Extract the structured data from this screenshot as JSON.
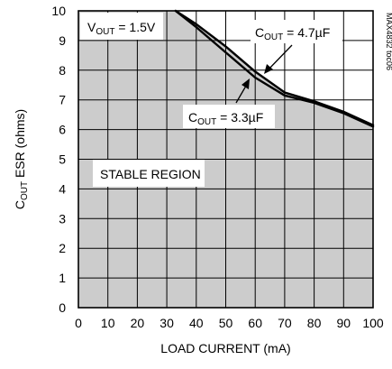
{
  "chart_data": {
    "type": "area",
    "xlabel": "LOAD CURRENT (mA)",
    "ylabel": {
      "main": "C",
      "sub": "OUT",
      "rest": " ESR (ohms)"
    },
    "xlim": [
      0,
      100
    ],
    "ylim": [
      0,
      10
    ],
    "xticks": [
      0,
      10,
      20,
      30,
      40,
      50,
      60,
      70,
      80,
      90,
      100
    ],
    "yticks": [
      0,
      1,
      2,
      3,
      4,
      5,
      6,
      7,
      8,
      9,
      10
    ],
    "grid": true,
    "region_label": "STABLE REGION",
    "condition": {
      "main": "V",
      "sub": "OUT",
      "rest": " = 1.5V"
    },
    "watermark": "MAX4832 toc06",
    "series": [
      {
        "name": {
          "main": "C",
          "sub": "OUT",
          "rest": " = 4.7µF"
        },
        "x": [
          33,
          40,
          50,
          60,
          70,
          80,
          90,
          100
        ],
        "y": [
          10,
          9.55,
          8.8,
          7.95,
          7.25,
          6.95,
          6.6,
          6.15
        ]
      },
      {
        "name": {
          "main": "C",
          "sub": "OUT",
          "rest": " = 3.3µF"
        },
        "x": [
          33,
          40,
          50,
          60,
          70,
          80,
          90,
          100
        ],
        "y": [
          10,
          9.45,
          8.6,
          7.75,
          7.15,
          6.9,
          6.55,
          6.1
        ]
      }
    ]
  }
}
